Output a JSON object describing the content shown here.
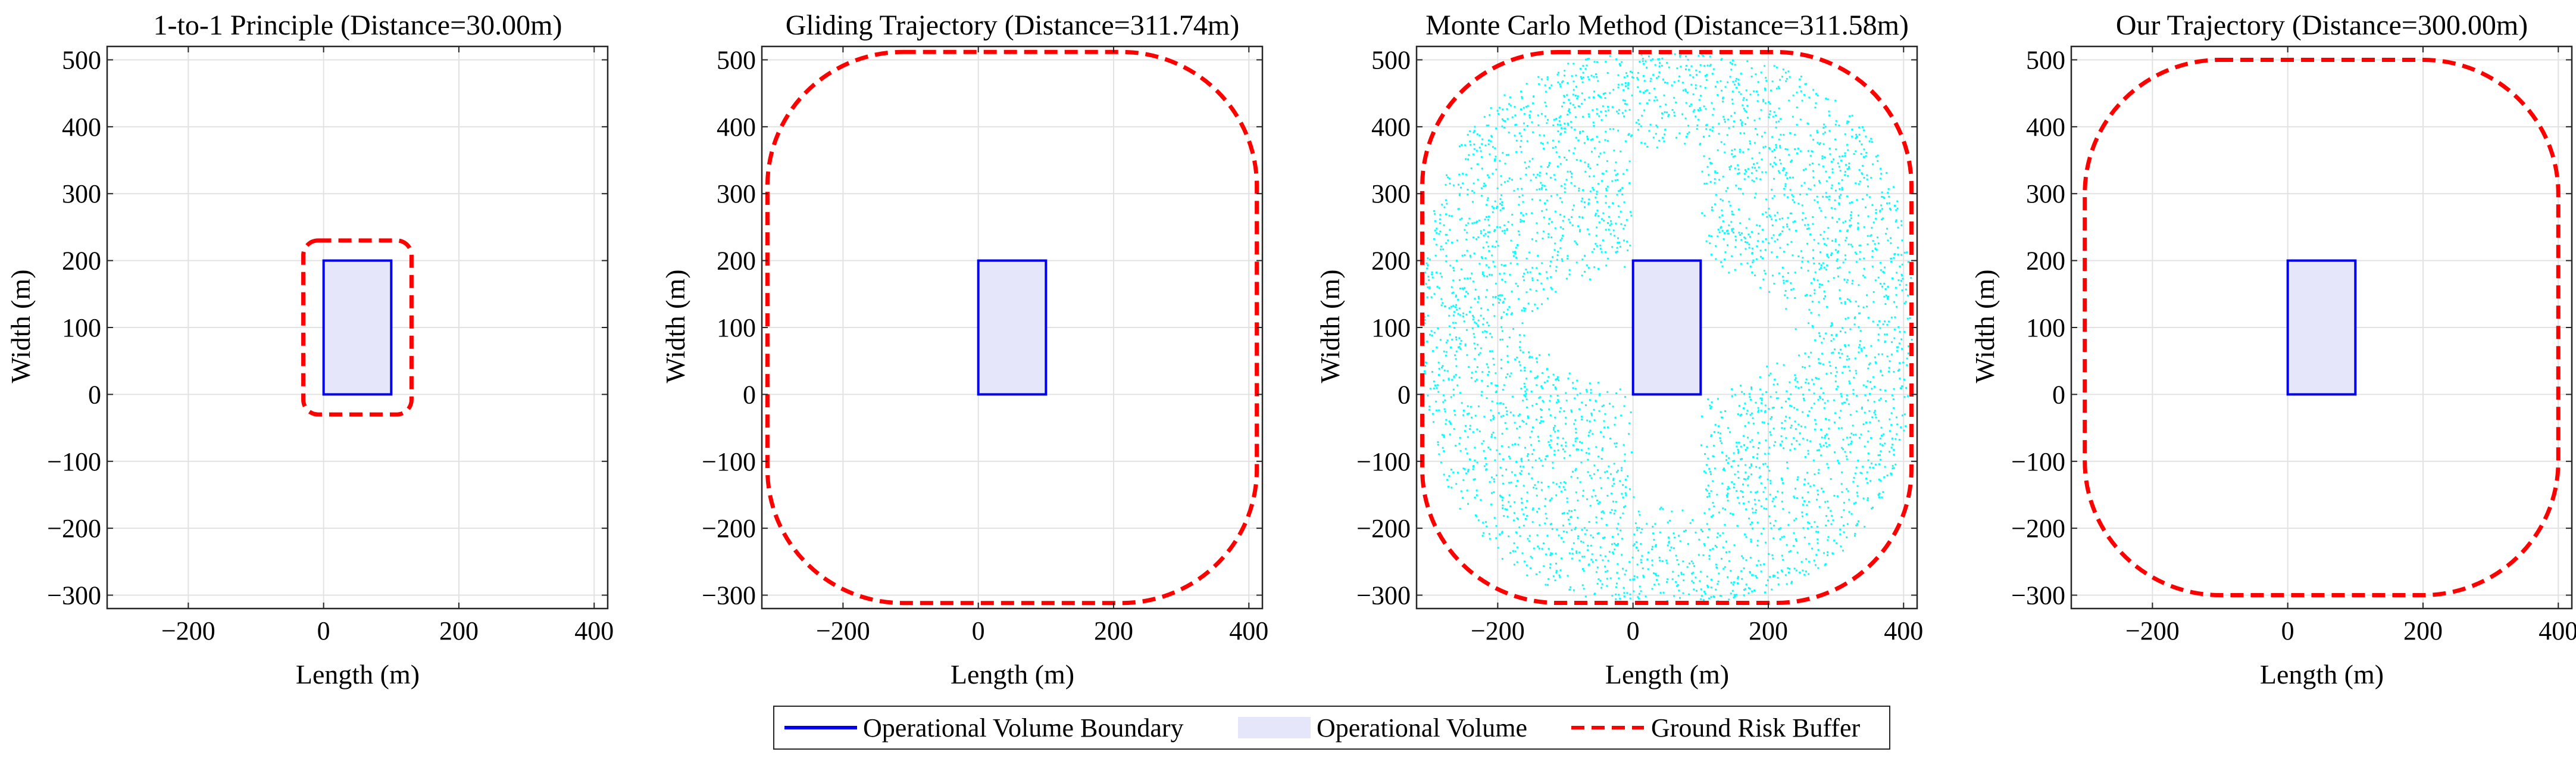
{
  "colors": {
    "boundary": "#0000ee",
    "volume_fill": "#e6e6fa",
    "buffer": "#ff0000",
    "monte_carlo": "#00ffff",
    "grid": "#e2e2e2",
    "axis": "#262626"
  },
  "legend": {
    "placement": "bottom-center",
    "entries": [
      "Operational Volume Boundary",
      "Operational Volume",
      "Ground Risk Buffer"
    ]
  },
  "chart_data": [
    {
      "type": "line",
      "title": "1-to-1 Principle (Distance=30.00m)",
      "xlabel": "Length (m)",
      "ylabel": "Width (m)",
      "xlim": [
        -320,
        420
      ],
      "ylim": [
        -320,
        520
      ],
      "xticks": [
        -200,
        0,
        200,
        400
      ],
      "yticks": [
        -300,
        -200,
        -100,
        0,
        100,
        200,
        300,
        400,
        500
      ],
      "grid": true,
      "operational_volume": {
        "x": [
          0,
          100
        ],
        "y": [
          0,
          200
        ]
      },
      "buffer_distance": 30.0,
      "buffer": {
        "x": [
          -30,
          130
        ],
        "y": [
          -30,
          230
        ],
        "corner_radius": 22
      },
      "scatter": false
    },
    {
      "type": "line",
      "title": "Gliding Trajectory (Distance=311.74m)",
      "xlabel": "Length (m)",
      "ylabel": "Width (m)",
      "xlim": [
        -320,
        420
      ],
      "ylim": [
        -320,
        520
      ],
      "xticks": [
        -200,
        0,
        200,
        400
      ],
      "yticks": [
        -300,
        -200,
        -100,
        0,
        100,
        200,
        300,
        400,
        500
      ],
      "grid": true,
      "operational_volume": {
        "x": [
          0,
          100
        ],
        "y": [
          0,
          200
        ]
      },
      "buffer_distance": 311.74,
      "buffer": {
        "x": [
          -311.74,
          411.74
        ],
        "y": [
          -311.74,
          511.74
        ],
        "corner_radius": 200
      },
      "scatter": false
    },
    {
      "type": "scatter",
      "title": "Monte Carlo Method (Distance=311.58m)",
      "xlabel": "Length (m)",
      "ylabel": "Width (m)",
      "xlim": [
        -320,
        420
      ],
      "ylim": [
        -320,
        520
      ],
      "xticks": [
        -200,
        0,
        200,
        400
      ],
      "yticks": [
        -300,
        -200,
        -100,
        0,
        100,
        200,
        300,
        400,
        500
      ],
      "grid": true,
      "operational_volume": {
        "x": [
          0,
          100
        ],
        "y": [
          0,
          200
        ]
      },
      "buffer_distance": 311.58,
      "buffer": {
        "x": [
          -311.58,
          411.58
        ],
        "y": [
          -311.58,
          511.58
        ],
        "corner_radius": 200
      },
      "scatter": true,
      "scatter_clear_zones": {
        "vertical_strip": {
          "x": [
            0,
            100
          ],
          "y": [
            -180,
            380
          ]
        },
        "horizontal_lens": {
          "x": [
            -170,
            270
          ],
          "y": [
            -20,
            220
          ]
        }
      }
    },
    {
      "type": "line",
      "title": "Our Trajectory (Distance=300.00m)",
      "xlabel": "Length (m)",
      "ylabel": "Width (m)",
      "xlim": [
        -320,
        420
      ],
      "ylim": [
        -320,
        520
      ],
      "xticks": [
        -200,
        0,
        200,
        400
      ],
      "yticks": [
        -300,
        -200,
        -100,
        0,
        100,
        200,
        300,
        400,
        500
      ],
      "grid": true,
      "operational_volume": {
        "x": [
          0,
          100
        ],
        "y": [
          0,
          200
        ]
      },
      "buffer_distance": 300.0,
      "buffer": {
        "x": [
          -300,
          400
        ],
        "y": [
          -300,
          500
        ],
        "corner_radius": 200
      },
      "scatter": false
    }
  ]
}
